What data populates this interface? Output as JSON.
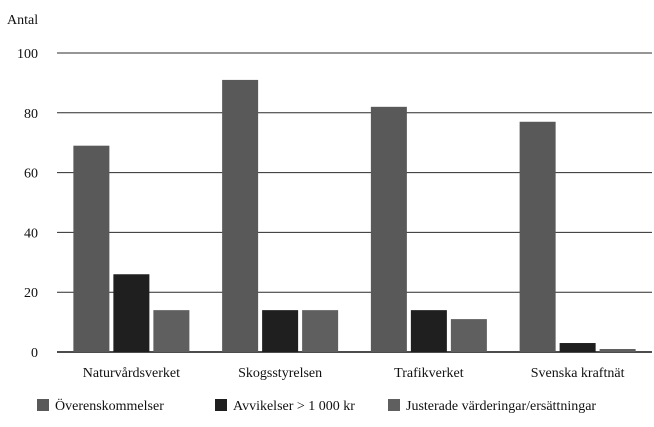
{
  "chart_data": {
    "type": "bar",
    "ylabel": "Antal",
    "ylim": [
      0,
      100
    ],
    "yticks": [
      0,
      20,
      40,
      60,
      80,
      100
    ],
    "grid": true,
    "legend_position": "bottom",
    "categories": [
      "Naturvårdsverket",
      "Skogsstyrelsen",
      "Trafikverket",
      "Svenska kraftnät"
    ],
    "series": [
      {
        "name": "Överenskommelser",
        "color": "#595959",
        "values": [
          69,
          91,
          82,
          77
        ]
      },
      {
        "name": "Avvikelser > 1 000 kr",
        "color": "#1f1f1f",
        "values": [
          26,
          14,
          14,
          3
        ]
      },
      {
        "name": "Justerade värderingar/ersättningar",
        "color": "#5f5f5f",
        "values": [
          14,
          14,
          11,
          1
        ]
      }
    ]
  }
}
